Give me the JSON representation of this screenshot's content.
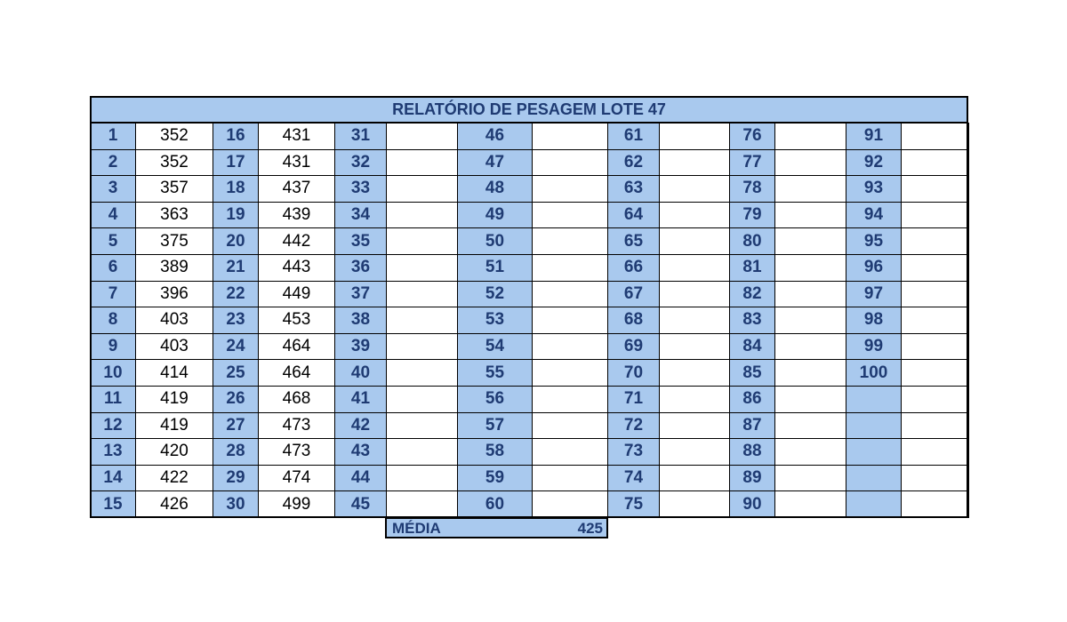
{
  "table": {
    "title": "RELATÓRIO DE PESAGEM LOTE  47",
    "groups": [
      {
        "labels": [
          1,
          2,
          3,
          4,
          5,
          6,
          7,
          8,
          9,
          10,
          11,
          12,
          13,
          14,
          15
        ],
        "values": [
          352,
          352,
          357,
          363,
          375,
          389,
          396,
          403,
          403,
          414,
          419,
          419,
          420,
          422,
          426
        ]
      },
      {
        "labels": [
          16,
          17,
          18,
          19,
          20,
          21,
          22,
          23,
          24,
          25,
          26,
          27,
          28,
          29,
          30
        ],
        "values": [
          431,
          431,
          437,
          439,
          442,
          443,
          449,
          453,
          464,
          464,
          468,
          473,
          473,
          474,
          499
        ]
      },
      {
        "labels": [
          31,
          32,
          33,
          34,
          35,
          36,
          37,
          38,
          39,
          40,
          41,
          42,
          43,
          44,
          45
        ]
      },
      {
        "labels": [
          46,
          47,
          48,
          49,
          50,
          51,
          52,
          53,
          54,
          55,
          56,
          57,
          58,
          59,
          60
        ]
      },
      {
        "labels": [
          61,
          62,
          63,
          64,
          65,
          66,
          67,
          68,
          69,
          70,
          71,
          72,
          73,
          74,
          75
        ]
      },
      {
        "labels": [
          76,
          77,
          78,
          79,
          80,
          81,
          82,
          83,
          84,
          85,
          86,
          87,
          88,
          89,
          90
        ]
      },
      {
        "labels": [
          91,
          92,
          93,
          94,
          95,
          96,
          97,
          98,
          99,
          100,
          null,
          null,
          null,
          null,
          null
        ]
      }
    ],
    "footer": {
      "label": "MÉDIA",
      "value": 425
    }
  }
}
